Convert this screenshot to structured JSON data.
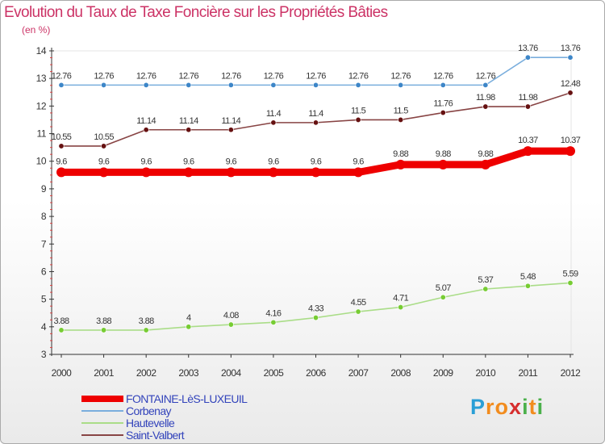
{
  "chart_data": {
    "type": "line",
    "title": "Evolution du Taux de Taxe Foncière sur les Propriétés Bâties",
    "ylabel": "(en %)",
    "ylim": [
      3,
      14
    ],
    "yticks": [
      3,
      4,
      5,
      6,
      7,
      8,
      9,
      10,
      11,
      12,
      13,
      14
    ],
    "categories": [
      "2000",
      "2001",
      "2002",
      "2003",
      "2004",
      "2005",
      "2006",
      "2007",
      "2008",
      "2009",
      "2010",
      "2011",
      "2012"
    ],
    "series": [
      {
        "name": "FONTAINE-LèS-LUXEUIL",
        "line_color": "#ee0000",
        "marker_color": "#ee0000",
        "emphasis": true,
        "values": [
          9.6,
          9.6,
          9.6,
          9.6,
          9.6,
          9.6,
          9.6,
          9.6,
          9.88,
          9.88,
          9.88,
          10.37,
          10.37
        ],
        "labels": [
          "9.6",
          "9.6",
          "9.6",
          "9.6",
          "9.6",
          "9.6",
          "9.6",
          "9.6",
          "9.88",
          "9.88",
          "9.88",
          "10.37",
          "10.37"
        ]
      },
      {
        "name": "Corbenay",
        "line_color": "#7aaedd",
        "marker_color": "#3d86c8",
        "values": [
          12.76,
          12.76,
          12.76,
          12.76,
          12.76,
          12.76,
          12.76,
          12.76,
          12.76,
          12.76,
          12.76,
          13.76,
          13.76
        ],
        "labels": [
          "12.76",
          "12.76",
          "12.76",
          "12.76",
          "12.76",
          "12.76",
          "12.76",
          "12.76",
          "12.76",
          "12.76",
          "12.76",
          "13.76",
          "13.76"
        ]
      },
      {
        "name": "Hautevelle",
        "line_color": "#aadd88",
        "marker_color": "#77cc33",
        "values": [
          3.88,
          3.88,
          3.88,
          4,
          4.08,
          4.16,
          4.33,
          4.55,
          4.71,
          5.07,
          5.37,
          5.48,
          5.59
        ],
        "labels": [
          "3.88",
          "3.88",
          "3.88",
          "4",
          "4.08",
          "4.16",
          "4.33",
          "4.55",
          "4.71",
          "5.07",
          "5.37",
          "5.48",
          "5.59"
        ]
      },
      {
        "name": "Saint-Valbert",
        "line_color": "#884444",
        "marker_color": "#661111",
        "values": [
          10.55,
          10.55,
          11.14,
          11.14,
          11.14,
          11.4,
          11.4,
          11.5,
          11.5,
          11.76,
          11.98,
          11.98,
          12.48
        ],
        "labels": [
          "10.55",
          "10.55",
          "11.14",
          "11.14",
          "11.14",
          "11.4",
          "11.4",
          "11.5",
          "11.5",
          "11.76",
          "11.98",
          "11.98",
          "12.48"
        ]
      }
    ],
    "legend_position": "bottom-left"
  },
  "logo": {
    "text": "Proxiti",
    "letters": [
      "P",
      "r",
      "o",
      "x",
      "i",
      "t",
      "i"
    ],
    "colors": [
      "#2a9fd6",
      "#f28c1e",
      "#f28c1e",
      "#d62e2e",
      "#4bb04b",
      "#f28c1e",
      "#4bb04b"
    ]
  }
}
